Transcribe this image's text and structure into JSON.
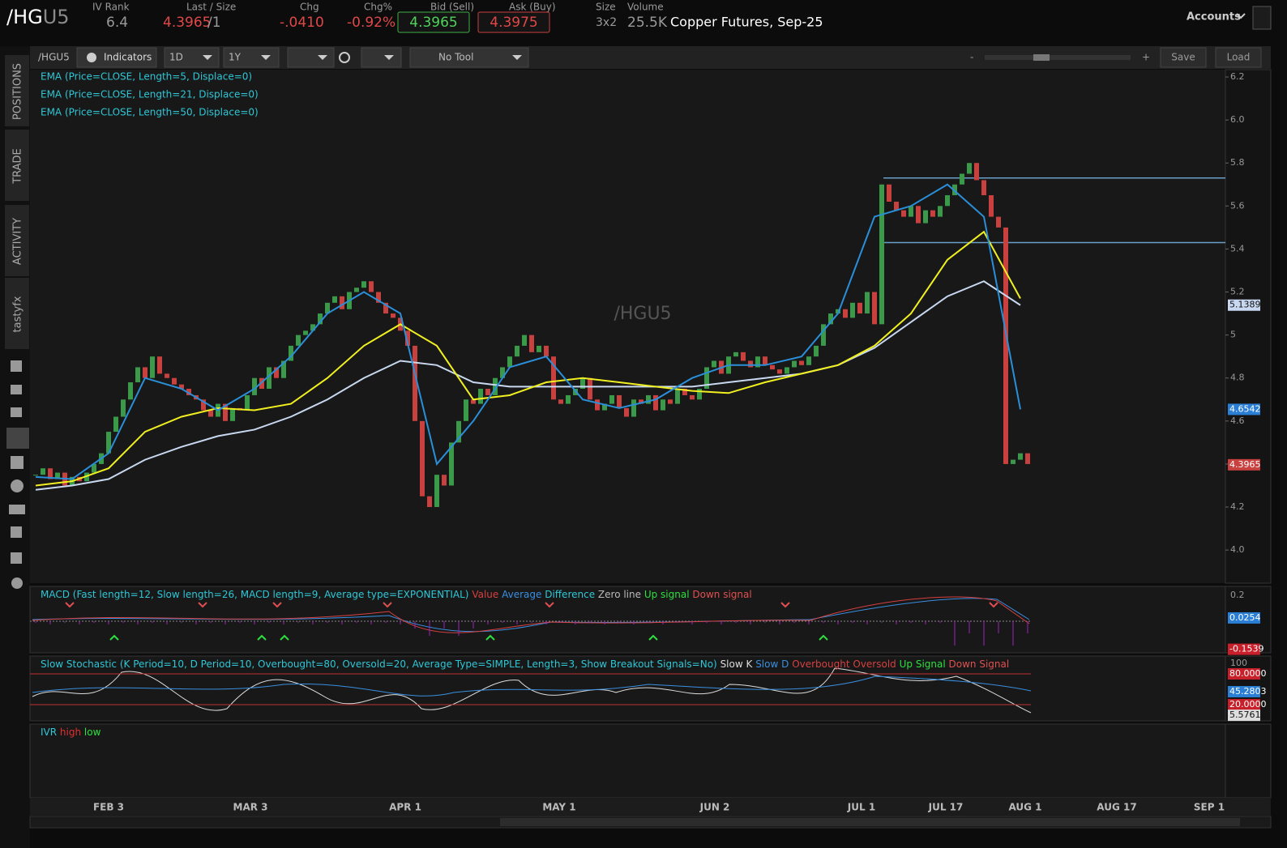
{
  "header": {
    "symbol_root": "/HG",
    "symbol_month": "U5",
    "iv_rank_label": "IV Rank",
    "iv_rank": "6.4",
    "last_label": "Last / Size",
    "last": "4.3965",
    "size_suffix": "/1",
    "chg_label": "Chg",
    "chg": "-.0410",
    "chg_pct_label": "Chg%",
    "chg_pct": "-0.92%",
    "bid_label": "Bid (Sell)",
    "bid": "4.3965",
    "ask_label": "Ask (Buy)",
    "ask": "4.3975",
    "size_label": "Size",
    "size": "3x2",
    "volume_label": "Volume",
    "volume": "25.5K",
    "description": "Copper Futures, Sep-25",
    "accounts": "Accounts"
  },
  "toolbar": {
    "symbol": "/HGU5",
    "indicators": "Indicators",
    "aggregation": "1D",
    "range": "1Y",
    "tool": "No Tool",
    "zoom_out": "-",
    "zoom_in": "+",
    "save": "Save",
    "load": "Load"
  },
  "sidebar": {
    "tabs": [
      "POSITIONS",
      "TRADE",
      "ACTIVITY",
      "tastyfx"
    ]
  },
  "chart": {
    "watermark": "/HGU5",
    "studies": [
      "EMA (Price=CLOSE, Length=5, Displace=0)",
      "EMA (Price=CLOSE, Length=21, Displace=0)",
      "EMA (Price=CLOSE, Length=50, Displace=0)"
    ],
    "ylim": [
      3.846,
      6.234
    ],
    "yticks": [
      {
        "value": 6.2,
        "label": "6.2"
      },
      {
        "value": 6,
        "label": "6.0"
      },
      5.8,
      5.6,
      5.4,
      5.2,
      5,
      4.8,
      4.6,
      4.4,
      4.2,
      {
        "value": 4,
        "label": "4.0"
      }
    ],
    "closes": [
      4.35,
      4.38,
      4.33,
      4.36,
      4.3,
      4.34,
      4.32,
      4.36,
      4.4,
      4.45,
      4.55,
      4.62,
      4.7,
      4.78,
      4.85,
      4.8,
      4.9,
      4.82,
      4.8,
      4.77,
      4.75,
      4.72,
      4.7,
      4.65,
      4.62,
      4.68,
      4.6,
      4.66,
      4.65,
      4.72,
      4.8,
      4.75,
      4.85,
      4.8,
      4.88,
      4.95,
      5.0,
      5.02,
      5.05,
      5.1,
      5.15,
      5.18,
      5.12,
      5.2,
      5.22,
      5.25,
      5.2,
      5.15,
      5.1,
      5.08,
      5.02,
      4.95,
      4.6,
      4.25,
      4.2,
      4.35,
      4.3,
      4.5,
      4.6,
      4.7,
      4.68,
      4.75,
      4.72,
      4.8,
      4.85,
      4.9,
      4.95,
      5.0,
      4.92,
      4.95,
      4.9,
      4.7,
      4.68,
      4.72,
      4.75,
      4.8,
      4.7,
      4.65,
      4.68,
      4.72,
      4.66,
      4.62,
      4.7,
      4.68,
      4.72,
      4.65,
      4.7,
      4.68,
      4.75,
      4.72,
      4.7,
      4.75,
      4.85,
      4.88,
      4.82,
      4.9,
      4.92,
      4.88,
      4.85,
      4.9,
      4.86,
      4.84,
      4.82,
      4.85,
      4.88,
      4.86,
      4.9,
      4.95,
      5.05,
      5.1,
      5.12,
      5.08,
      5.15,
      5.1,
      5.2,
      5.05,
      5.7,
      5.62,
      5.58,
      5.55,
      5.6,
      5.52,
      5.58,
      5.55,
      5.6,
      5.65,
      5.7,
      5.75,
      5.8,
      5.72,
      5.65,
      5.55,
      5.5,
      4.4,
      4.42,
      4.45,
      4.4
    ],
    "ema_x": [
      0,
      5,
      10,
      15,
      20,
      25,
      30,
      35,
      40,
      45,
      50,
      55,
      60,
      65,
      70,
      75,
      80,
      85,
      90,
      95,
      100,
      105,
      110,
      115,
      120,
      125,
      130,
      135
    ],
    "ema5": [
      4.34,
      4.33,
      4.45,
      4.8,
      4.75,
      4.65,
      4.75,
      4.9,
      5.1,
      5.2,
      5.1,
      4.4,
      4.6,
      4.85,
      4.9,
      4.7,
      4.66,
      4.7,
      4.8,
      4.86,
      4.86,
      4.9,
      5.1,
      5.55,
      5.6,
      5.7,
      5.55,
      4.6542
    ],
    "ema21": [
      4.3,
      4.32,
      4.38,
      4.55,
      4.62,
      4.66,
      4.65,
      4.68,
      4.8,
      4.95,
      5.05,
      4.95,
      4.7,
      4.72,
      4.78,
      4.8,
      4.78,
      4.76,
      4.74,
      4.73,
      4.78,
      4.82,
      4.86,
      4.95,
      5.1,
      5.35,
      5.48,
      5.17
    ],
    "ema50": [
      4.28,
      4.3,
      4.33,
      4.42,
      4.48,
      4.53,
      4.56,
      4.62,
      4.7,
      4.8,
      4.88,
      4.86,
      4.78,
      4.76,
      4.76,
      4.76,
      4.76,
      4.76,
      4.76,
      4.78,
      4.8,
      4.82,
      4.86,
      4.94,
      5.06,
      5.18,
      5.25,
      5.1389
    ],
    "levels": [
      5.73,
      5.43
    ],
    "badges": [
      {
        "value": 5.1389,
        "color": "#c8d8f0"
      },
      {
        "value": 4.6542,
        "color": "#2a7fd4"
      },
      {
        "value": 4.3965,
        "color": "#c8413f"
      }
    ],
    "x_labels": [
      "FEB 3",
      "MAR 3",
      "APR 1",
      "MAY 1",
      "JUN 2",
      "JUL 1",
      "JUL 17",
      "AUG 1",
      "AUG 17",
      "SEP 1"
    ]
  },
  "macd": {
    "legend": [
      {
        "text": "MACD (Fast length=12, Slow length=26, MACD length=9, Average type=EXPONENTIAL)",
        "color": "#2ec7d6"
      },
      {
        "text": "Value",
        "color": "#d64040"
      },
      {
        "text": "Average",
        "color": "#3a8fe0"
      },
      {
        "text": "Difference",
        "color": "#2ec7d6"
      },
      {
        "text": "Zero line",
        "color": "#bbbbbb"
      },
      {
        "text": "Up signal",
        "color": "#2ee040"
      },
      {
        "text": "Down signal",
        "color": "#e05050"
      }
    ],
    "tick": 0.2,
    "badges": [
      {
        "value": 0.0254,
        "color": "#2a7fd4"
      },
      {
        "value": -0.1539,
        "color": "#c8202a"
      }
    ]
  },
  "stochastic": {
    "legend": [
      {
        "text": "Slow Stochastic (K Period=10, D Period=10, Overbought=80, Oversold=20, Average Type=SIMPLE, Length=3, Show Breakout Signals=No)",
        "color": "#2ec7d6"
      },
      {
        "text": "Slow K",
        "color": "#dddddd"
      },
      {
        "text": "Slow D",
        "color": "#3a8fe0"
      },
      {
        "text": "Overbought",
        "color": "#d64040"
      },
      {
        "text": "Oversold",
        "color": "#d64040"
      },
      {
        "text": "Up Signal",
        "color": "#2ee040"
      },
      {
        "text": "Down Signal",
        "color": "#e05050"
      }
    ],
    "tick": 100,
    "badges": [
      {
        "value": 80,
        "label": "80.0000",
        "color": "#c8202a"
      },
      {
        "value": 45.2803,
        "label": "45.2803",
        "color": "#2a7fd4"
      },
      {
        "value": 20,
        "label": "20.0000",
        "color": "#c8202a"
      },
      {
        "value": 5.5761,
        "label": "5.5761",
        "color": "#dddddd"
      }
    ]
  },
  "ivr": {
    "legend": [
      {
        "text": "IVR",
        "color": "#2ec7d6"
      },
      {
        "text": "high",
        "color": "#e03030"
      },
      {
        "text": "low",
        "color": "#2ee040"
      }
    ]
  }
}
